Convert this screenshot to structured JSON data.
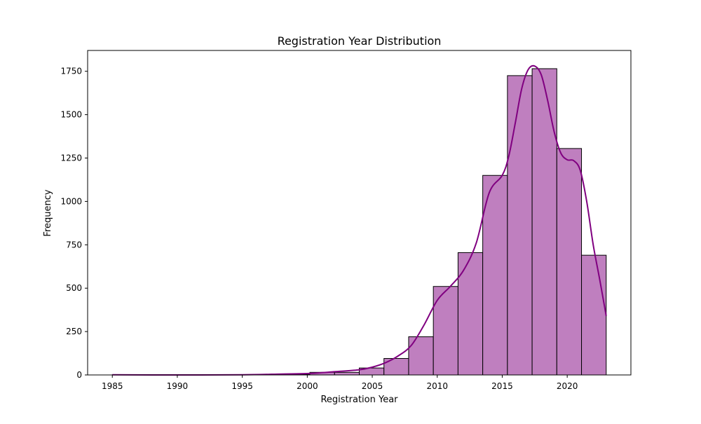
{
  "chart_data": {
    "type": "bar",
    "title": "Registration Year Distribution",
    "xlabel": "Registration Year",
    "ylabel": "Frequency",
    "xlim": [
      1983.1,
      2024.9
    ],
    "ylim": [
      0,
      1870
    ],
    "x_ticks": [
      1985,
      1990,
      1995,
      2000,
      2005,
      2010,
      2015,
      2020
    ],
    "y_ticks": [
      0,
      250,
      500,
      750,
      1000,
      1250,
      1500,
      1750
    ],
    "grid": false,
    "bins": [
      {
        "start": 1985.0,
        "end": 1986.9,
        "value": 1
      },
      {
        "start": 1986.9,
        "end": 1988.8,
        "value": 0
      },
      {
        "start": 1988.8,
        "end": 1990.7,
        "value": 1
      },
      {
        "start": 1990.7,
        "end": 1992.6,
        "value": 0
      },
      {
        "start": 1992.6,
        "end": 1994.5,
        "value": 1
      },
      {
        "start": 1994.5,
        "end": 1996.4,
        "value": 1
      },
      {
        "start": 1996.4,
        "end": 1998.3,
        "value": 3
      },
      {
        "start": 1998.3,
        "end": 2000.2,
        "value": 3
      },
      {
        "start": 2000.2,
        "end": 2002.1,
        "value": 15
      },
      {
        "start": 2002.1,
        "end": 2004.0,
        "value": 15
      },
      {
        "start": 2004.0,
        "end": 2005.9,
        "value": 40
      },
      {
        "start": 2005.9,
        "end": 2007.8,
        "value": 95
      },
      {
        "start": 2007.8,
        "end": 2009.7,
        "value": 220
      },
      {
        "start": 2009.7,
        "end": 2011.6,
        "value": 510
      },
      {
        "start": 2011.6,
        "end": 2013.5,
        "value": 705
      },
      {
        "start": 2013.5,
        "end": 2015.4,
        "value": 1150
      },
      {
        "start": 2015.4,
        "end": 2017.3,
        "value": 1725
      },
      {
        "start": 2017.3,
        "end": 2019.2,
        "value": 1765
      },
      {
        "start": 2019.2,
        "end": 2021.1,
        "value": 1305
      },
      {
        "start": 2021.1,
        "end": 2023.0,
        "value": 690
      }
    ],
    "kde": {
      "x": [
        1985,
        1990,
        1995,
        1998,
        2000,
        2002,
        2004,
        2005,
        2006,
        2007,
        2008,
        2009,
        2010,
        2011,
        2012,
        2013,
        2014,
        2015,
        2015.5,
        2016,
        2016.5,
        2017,
        2017.5,
        2018,
        2018.5,
        2019,
        2019.5,
        2020,
        2020.5,
        2021,
        2021.5,
        2022,
        2022.5,
        2023
      ],
      "y": [
        1,
        0,
        1,
        5,
        8,
        18,
        30,
        45,
        70,
        110,
        170,
        290,
        430,
        510,
        600,
        760,
        1050,
        1150,
        1260,
        1450,
        1650,
        1760,
        1780,
        1730,
        1580,
        1400,
        1280,
        1240,
        1235,
        1180,
        1000,
        750,
        550,
        340
      ]
    },
    "bar_color": "#bf7fbf",
    "bar_edge_color": "#000000",
    "kde_color": "#800080"
  }
}
